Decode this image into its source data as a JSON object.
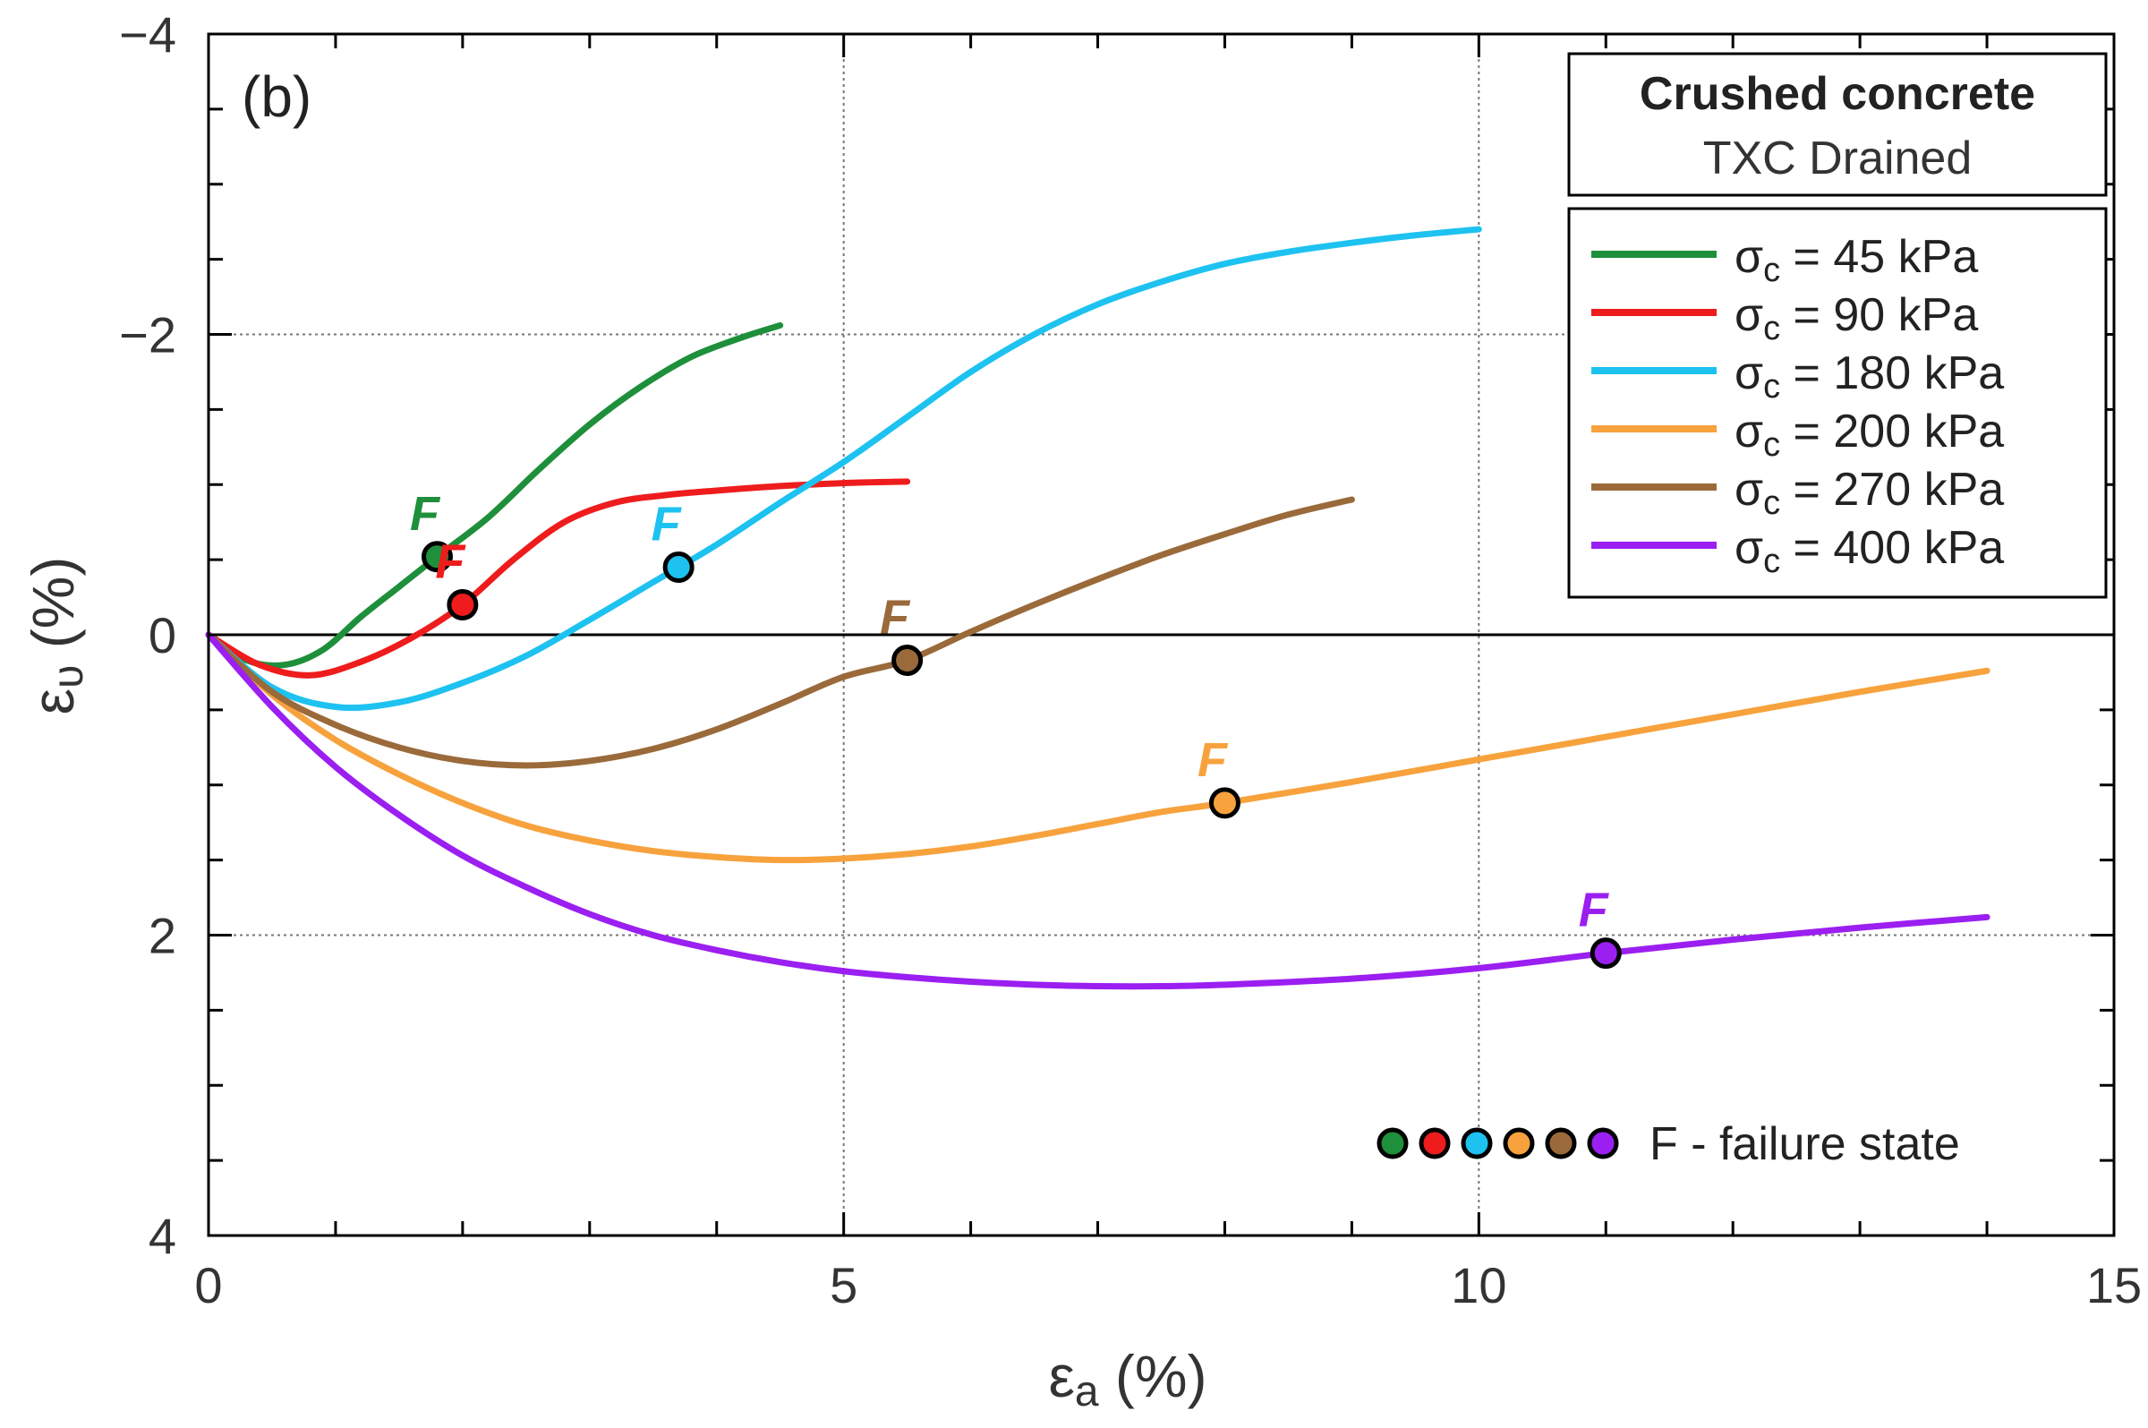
{
  "chart_data": {
    "type": "line",
    "panel_label": "(b)",
    "title": "Crushed concrete",
    "subtitle": "TXC Drained",
    "xlabel_base": "ε",
    "xlabel_sub": "a",
    "xlabel_unit": " (%)",
    "ylabel_base": "ε",
    "ylabel_sub": "υ",
    "ylabel_unit": " (%)",
    "xlim": [
      0,
      15
    ],
    "ylim": [
      4,
      -4
    ],
    "x_ticks_major": [
      0,
      5,
      10,
      15
    ],
    "x_tick_labels": [
      "0",
      "5",
      "10",
      "15"
    ],
    "y_ticks_major": [
      4,
      2,
      0,
      -2,
      -4
    ],
    "y_tick_labels": [
      "4",
      "2",
      "0",
      "−2",
      "−4"
    ],
    "grid": true,
    "legend_position": "top-right",
    "legend_symbol": "σ",
    "legend_sub": "c",
    "failure_marker_label": "F",
    "failure_legend_text": "F -  failure state",
    "series": [
      {
        "name": "45 kPa",
        "color": "#1e8f3a",
        "x": [
          0,
          0.3,
          0.6,
          0.9,
          1.2,
          1.5,
          1.8,
          2.2,
          2.6,
          3.0,
          3.4,
          3.8,
          4.2,
          4.5
        ],
        "y": [
          0,
          0.17,
          0.2,
          0.1,
          -0.12,
          -0.32,
          -0.52,
          -0.78,
          -1.1,
          -1.4,
          -1.65,
          -1.85,
          -1.98,
          -2.06
        ],
        "failure": {
          "x": 1.8,
          "y": -0.52
        }
      },
      {
        "name": "90 kPa",
        "color": "#ee1c1c",
        "x": [
          0,
          0.4,
          0.8,
          1.2,
          1.6,
          2.0,
          2.4,
          2.8,
          3.2,
          3.6,
          4.0,
          4.5,
          5.0,
          5.5
        ],
        "y": [
          0,
          0.2,
          0.27,
          0.18,
          0.02,
          -0.2,
          -0.5,
          -0.75,
          -0.88,
          -0.93,
          -0.96,
          -0.99,
          -1.01,
          -1.02
        ],
        "failure": {
          "x": 2.0,
          "y": -0.2
        }
      },
      {
        "name": "180 kPa",
        "color": "#1ec2f0",
        "x": [
          0,
          0.5,
          1.0,
          1.5,
          2.0,
          2.5,
          3.0,
          3.5,
          4.0,
          4.5,
          5.0,
          5.5,
          6.0,
          6.5,
          7.0,
          7.5,
          8.0,
          8.5,
          9.0,
          9.5,
          10.0
        ],
        "y": [
          0,
          0.35,
          0.48,
          0.45,
          0.32,
          0.14,
          -0.1,
          -0.35,
          -0.6,
          -0.88,
          -1.15,
          -1.45,
          -1.75,
          -2.0,
          -2.2,
          -2.35,
          -2.47,
          -2.55,
          -2.61,
          -2.66,
          -2.7
        ],
        "failure": {
          "x": 3.7,
          "y": -0.45
        }
      },
      {
        "name": "200 kPa",
        "color": "#f7a23d",
        "x": [
          0,
          0.5,
          1.0,
          1.5,
          2.0,
          2.5,
          3.0,
          3.5,
          4.0,
          4.5,
          5.0,
          5.5,
          6.0,
          6.5,
          7.0,
          7.5,
          8.0,
          9.0,
          10.0,
          11.0,
          12.0,
          13.0,
          14.0
        ],
        "y": [
          0,
          0.4,
          0.7,
          0.93,
          1.12,
          1.27,
          1.37,
          1.44,
          1.48,
          1.5,
          1.49,
          1.46,
          1.41,
          1.34,
          1.26,
          1.18,
          1.12,
          0.98,
          0.83,
          0.68,
          0.53,
          0.38,
          0.24
        ],
        "failure": {
          "x": 8.0,
          "y": 1.12
        }
      },
      {
        "name": "270 kPa",
        "color": "#9a6a3a",
        "x": [
          0,
          0.5,
          1.0,
          1.5,
          2.0,
          2.5,
          3.0,
          3.5,
          4.0,
          4.5,
          5.0,
          5.5,
          6.0,
          6.5,
          7.0,
          7.5,
          8.0,
          8.5,
          9.0
        ],
        "y": [
          0,
          0.38,
          0.6,
          0.75,
          0.84,
          0.87,
          0.84,
          0.76,
          0.63,
          0.46,
          0.28,
          0.17,
          -0.02,
          -0.2,
          -0.37,
          -0.53,
          -0.67,
          -0.8,
          -0.9
        ],
        "failure": {
          "x": 5.5,
          "y": 0.17
        }
      },
      {
        "name": "400 kPa",
        "color": "#9b1ff0",
        "x": [
          0,
          0.5,
          1.0,
          1.5,
          2.0,
          2.5,
          3.0,
          3.5,
          4.0,
          4.5,
          5.0,
          5.5,
          6.0,
          6.5,
          7.0,
          7.5,
          8.0,
          9.0,
          10.0,
          11.0,
          12.0,
          13.0,
          14.0
        ],
        "y": [
          0,
          0.48,
          0.88,
          1.2,
          1.47,
          1.68,
          1.86,
          2.0,
          2.1,
          2.18,
          2.24,
          2.28,
          2.31,
          2.33,
          2.34,
          2.34,
          2.33,
          2.29,
          2.22,
          2.12,
          2.03,
          1.95,
          1.88
        ],
        "failure": {
          "x": 11.0,
          "y": 2.12
        }
      }
    ]
  }
}
